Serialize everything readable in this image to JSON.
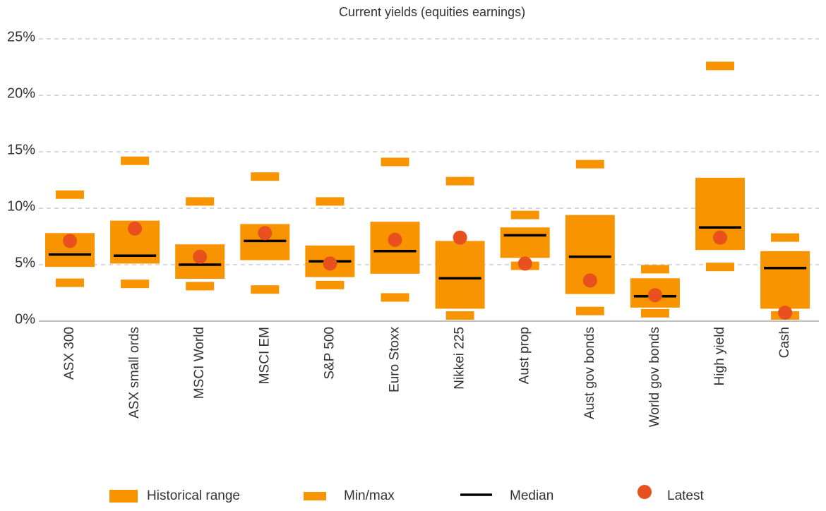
{
  "chart_data": {
    "type": "range",
    "title": "Current yields (equities earnings)",
    "categories": [
      "ASX 300",
      "ASX small ords",
      "MSCI World",
      "MSCI EM",
      "S&P 500",
      "Euro Stoxx",
      "Nikkei 225",
      "Aust prop",
      "Aust gov bonds",
      "World gov bonds",
      "High yield",
      "Cash"
    ],
    "series": [
      {
        "name": "Historical range",
        "color": "#f79400",
        "low": [
          4.8,
          5.1,
          3.75,
          5.4,
          3.9,
          4.2,
          1.1,
          5.6,
          2.4,
          1.2,
          6.3,
          1.1
        ],
        "high": [
          7.8,
          8.9,
          6.8,
          8.6,
          6.7,
          8.8,
          7.1,
          8.3,
          9.4,
          3.8,
          12.7,
          6.2
        ]
      },
      {
        "name": "Min/max",
        "color": "#f79400",
        "min": [
          3.4,
          3.3,
          3.1,
          2.8,
          3.2,
          2.1,
          0.5,
          4.9,
          0.9,
          0.7,
          4.8,
          0.5
        ],
        "max": [
          11.2,
          14.2,
          10.6,
          12.8,
          10.6,
          14.1,
          12.4,
          9.4,
          13.9,
          4.6,
          22.6,
          7.4
        ]
      },
      {
        "name": "Median",
        "color": "#000000",
        "values": [
          5.9,
          5.8,
          5.0,
          7.1,
          5.3,
          6.2,
          3.8,
          7.6,
          5.7,
          2.2,
          8.3,
          4.7
        ]
      },
      {
        "name": "Latest",
        "color": "#e8501e",
        "values": [
          7.1,
          8.2,
          5.7,
          7.8,
          5.1,
          7.2,
          7.4,
          5.1,
          3.6,
          2.3,
          7.4,
          0.75
        ]
      }
    ],
    "ylim": [
      0,
      25
    ],
    "yticks": [
      {
        "value": 0,
        "label": "0%"
      },
      {
        "value": 5,
        "label": "5%"
      },
      {
        "value": 10,
        "label": "10%"
      },
      {
        "value": 15,
        "label": "15%"
      },
      {
        "value": 20,
        "label": "20%"
      },
      {
        "value": 25,
        "label": "25%"
      }
    ],
    "grid": true
  }
}
